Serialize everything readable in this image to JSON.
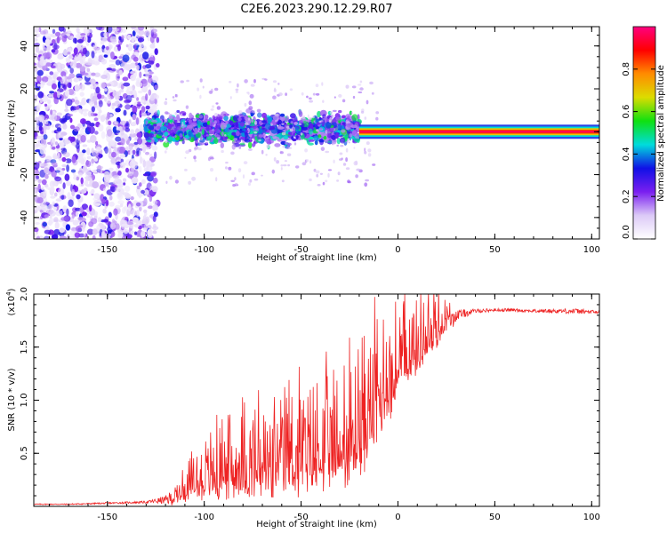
{
  "figure_title": "C2E6.2023.290.12.29.R07",
  "chart_data": [
    {
      "type": "heatmap",
      "title": "C2E6.2023.290.12.29.R07",
      "xlabel": "Height of straight line (km)",
      "ylabel": "Frequency (Hz)",
      "xlim": [
        -188,
        104
      ],
      "ylim": [
        -50,
        49
      ],
      "xticks": [
        -150,
        -100,
        -50,
        0,
        50,
        100
      ],
      "xtick_labels": [
        "-150",
        "-100",
        "-50",
        "0",
        "50",
        "100"
      ],
      "yticks": [
        -40,
        -20,
        0,
        20,
        40
      ],
      "ytick_labels": [
        "-40",
        "-20",
        "0",
        "20",
        "40"
      ],
      "colorbar": {
        "label": "Normalized spectral amplitude",
        "range": [
          0,
          1
        ],
        "ticks": [
          0.0,
          0.2,
          0.4,
          0.6,
          0.8
        ],
        "tick_labels": [
          "0.0",
          "0.2",
          "0.4",
          "0.6",
          "0.8"
        ],
        "colormap": [
          "#ffffff",
          "#dccaf7",
          "#7a1ff0",
          "#1010e6",
          "#00dcdc",
          "#10e010",
          "#dcdc00",
          "#ff8c00",
          "#ff0000",
          "#ff0080"
        ]
      },
      "regions": [
        {
          "name": "broadband noise",
          "x_range": [
            -188,
            -130
          ],
          "freq_range": [
            -50,
            49
          ],
          "amplitude_range": [
            0.05,
            0.35
          ]
        },
        {
          "name": "scattered signal",
          "x_range": [
            -130,
            -20
          ],
          "freq_range": [
            -10,
            8
          ],
          "amplitude_range": [
            0.15,
            0.55
          ]
        },
        {
          "name": "coherent line",
          "x_range": [
            -20,
            104
          ],
          "freq_center": 0,
          "freq_halfwidth": 1.5,
          "amplitude_range": [
            0.8,
            1.0
          ]
        }
      ]
    },
    {
      "type": "line",
      "xlabel": "Height of straight line (km)",
      "ylabel": "SNR (10 * v/v)",
      "y_multiplier": "(x10",
      "y_multiplier_exp": "4",
      "y_multiplier_close": ")",
      "xlim": [
        -188,
        104
      ],
      "ylim": [
        0,
        2.0
      ],
      "xticks": [
        -150,
        -100,
        -50,
        0,
        50,
        100
      ],
      "xtick_labels": [
        "-150",
        "-100",
        "-50",
        "0",
        "50",
        "100"
      ],
      "yticks": [
        0.5,
        1.0,
        1.5,
        2.0
      ],
      "ytick_labels": [
        "0.5",
        "1.0",
        "1.5",
        "2.0"
      ],
      "series": [
        {
          "name": "SNR",
          "color": "#ee2222",
          "x": [
            -188,
            -170,
            -150,
            -130,
            -120,
            -110,
            -100,
            -90,
            -80,
            -70,
            -60,
            -50,
            -40,
            -30,
            -20,
            -10,
            0,
            10,
            20,
            30,
            40,
            50,
            60,
            70,
            80,
            90,
            100,
            104
          ],
          "y": [
            0.02,
            0.02,
            0.03,
            0.04,
            0.06,
            0.12,
            0.18,
            0.24,
            0.28,
            0.28,
            0.3,
            0.34,
            0.38,
            0.4,
            0.5,
            0.9,
            1.2,
            1.4,
            1.6,
            1.8,
            1.84,
            1.85,
            1.85,
            1.84,
            1.84,
            1.84,
            1.83,
            1.83
          ],
          "noise_envelope": [
            0.005,
            0.005,
            0.008,
            0.01,
            0.04,
            0.15,
            0.25,
            0.35,
            0.4,
            0.4,
            0.45,
            0.5,
            0.5,
            0.55,
            0.55,
            0.55,
            0.45,
            0.35,
            0.25,
            0.05,
            0.02,
            0.015,
            0.015,
            0.015,
            0.02,
            0.025,
            0.02,
            0.02
          ]
        }
      ]
    }
  ]
}
